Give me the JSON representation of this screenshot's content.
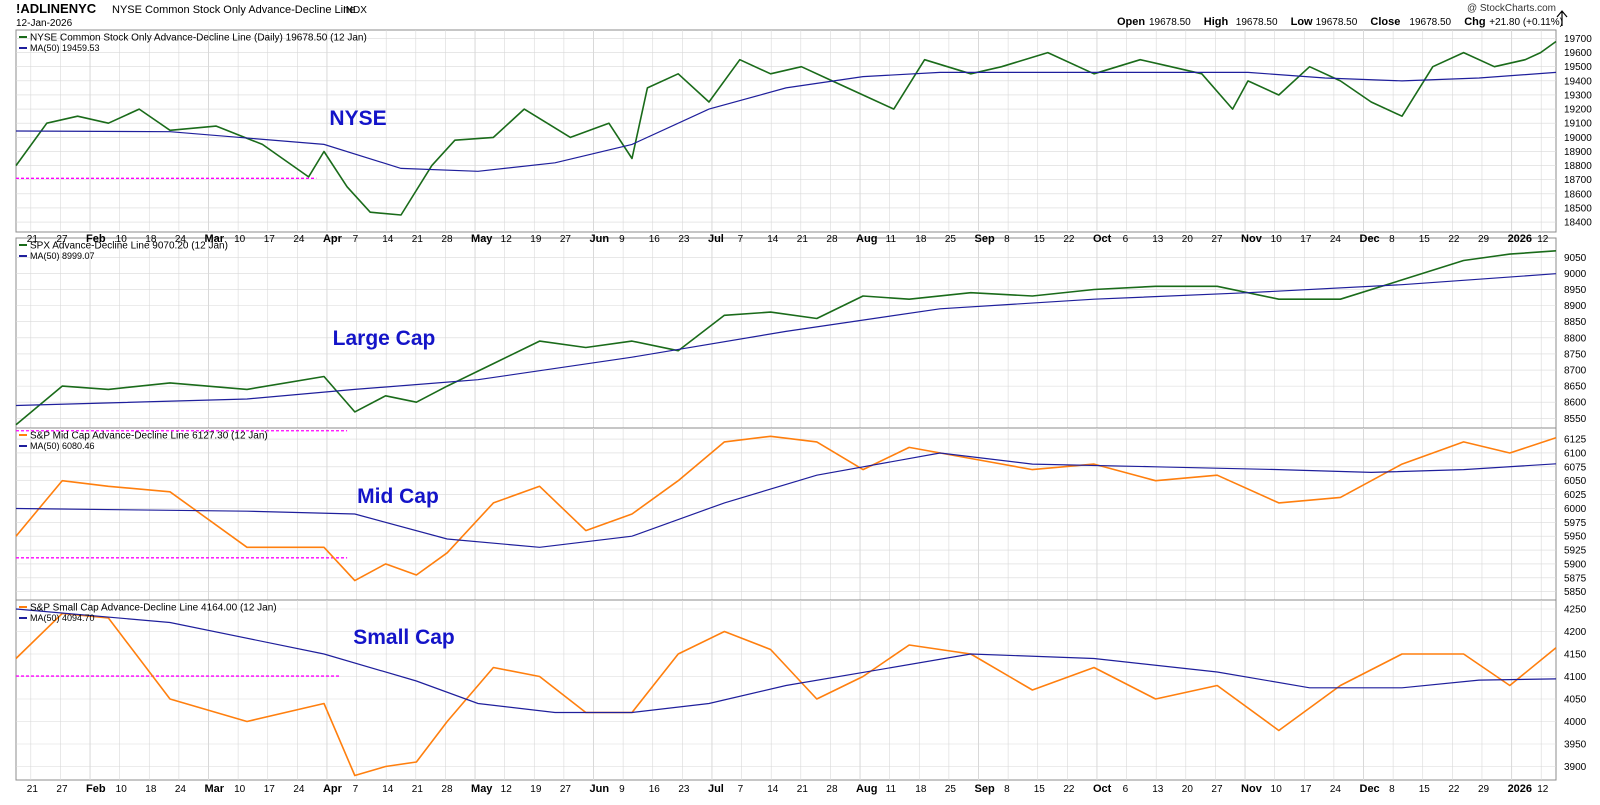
{
  "header": {
    "symbol": "!ADLINENYC",
    "name": "NYSE Common Stock Only Advance-Decline Line",
    "exchange": "INDX",
    "date": "12-Jan-2026",
    "watermark": "@ StockCharts.com",
    "quote": [
      {
        "label": "Open",
        "value": "19678.50"
      },
      {
        "label": "High",
        "value": "19678.50"
      },
      {
        "label": "Low",
        "value": "19678.50"
      },
      {
        "label": "Close",
        "value": "19678.50"
      },
      {
        "label": "Chg",
        "value": "+21.80 (+0.11%)"
      }
    ],
    "trend_icon": "up-arrow-icon"
  },
  "colors": {
    "green_line": "#1a6b1a",
    "orange_line": "#ff7f0e",
    "ma_line": "#1f1f9c",
    "annotation": "#1414c8",
    "reference": "#ff00ff",
    "grid": "#d9d9d9"
  },
  "x_axis": {
    "ticks": [
      {
        "label": "21",
        "bold": false
      },
      {
        "label": "27",
        "bold": false
      },
      {
        "label": "Feb",
        "bold": true
      },
      {
        "label": "10",
        "bold": false
      },
      {
        "label": "18",
        "bold": false
      },
      {
        "label": "24",
        "bold": false
      },
      {
        "label": "Mar",
        "bold": true
      },
      {
        "label": "10",
        "bold": false
      },
      {
        "label": "17",
        "bold": false
      },
      {
        "label": "24",
        "bold": false
      },
      {
        "label": "Apr",
        "bold": true
      },
      {
        "label": "7",
        "bold": false
      },
      {
        "label": "14",
        "bold": false
      },
      {
        "label": "21",
        "bold": false
      },
      {
        "label": "28",
        "bold": false
      },
      {
        "label": "May",
        "bold": true
      },
      {
        "label": "12",
        "bold": false
      },
      {
        "label": "19",
        "bold": false
      },
      {
        "label": "27",
        "bold": false
      },
      {
        "label": "Jun",
        "bold": true
      },
      {
        "label": "9",
        "bold": false
      },
      {
        "label": "16",
        "bold": false
      },
      {
        "label": "23",
        "bold": false
      },
      {
        "label": "Jul",
        "bold": true
      },
      {
        "label": "7",
        "bold": false
      },
      {
        "label": "14",
        "bold": false
      },
      {
        "label": "21",
        "bold": false
      },
      {
        "label": "28",
        "bold": false
      },
      {
        "label": "Aug",
        "bold": true
      },
      {
        "label": "11",
        "bold": false
      },
      {
        "label": "18",
        "bold": false
      },
      {
        "label": "25",
        "bold": false
      },
      {
        "label": "Sep",
        "bold": true
      },
      {
        "label": "8",
        "bold": false
      },
      {
        "label": "15",
        "bold": false
      },
      {
        "label": "22",
        "bold": false
      },
      {
        "label": "Oct",
        "bold": true
      },
      {
        "label": "6",
        "bold": false
      },
      {
        "label": "13",
        "bold": false
      },
      {
        "label": "20",
        "bold": false
      },
      {
        "label": "27",
        "bold": false
      },
      {
        "label": "Nov",
        "bold": true
      },
      {
        "label": "10",
        "bold": false
      },
      {
        "label": "17",
        "bold": false
      },
      {
        "label": "24",
        "bold": false
      },
      {
        "label": "Dec",
        "bold": true
      },
      {
        "label": "8",
        "bold": false
      },
      {
        "label": "15",
        "bold": false
      },
      {
        "label": "22",
        "bold": false
      },
      {
        "label": "29",
        "bold": false
      },
      {
        "label": "2026",
        "bold": true
      },
      {
        "label": "12",
        "bold": false
      }
    ]
  },
  "chart_data": [
    {
      "type": "line",
      "legend_line": "NYSE Common Stock Only Advance-Decline Line (Daily) 19678.50 (12 Jan)",
      "legend_ma": "MA(50) 19459.53",
      "annotation": "NYSE",
      "color": "green",
      "ylim": [
        18330,
        19760
      ],
      "yticks": [
        18400,
        18500,
        18600,
        18700,
        18800,
        18900,
        19000,
        19100,
        19200,
        19300,
        19400,
        19500,
        19600,
        19700
      ],
      "ref_level": 18710,
      "ref_x_range": [
        0,
        0.195
      ],
      "series": [
        {
          "role": "price",
          "x": [
            0,
            0.02,
            0.04,
            0.06,
            0.08,
            0.1,
            0.13,
            0.16,
            0.19,
            0.2,
            0.215,
            0.23,
            0.25,
            0.27,
            0.285,
            0.31,
            0.33,
            0.36,
            0.385,
            0.4,
            0.41,
            0.43,
            0.45,
            0.47,
            0.49,
            0.51,
            0.53,
            0.55,
            0.57,
            0.59,
            0.62,
            0.64,
            0.67,
            0.7,
            0.73,
            0.75,
            0.77,
            0.79,
            0.8,
            0.82,
            0.84,
            0.86,
            0.88,
            0.9,
            0.92,
            0.94,
            0.96,
            0.98,
            0.99,
            1.0
          ],
          "y": [
            18800,
            19100,
            19150,
            19100,
            19200,
            19050,
            19080,
            18950,
            18720,
            18900,
            18650,
            18470,
            18450,
            18800,
            18980,
            19000,
            19200,
            19000,
            19100,
            18850,
            19350,
            19450,
            19250,
            19550,
            19450,
            19500,
            19400,
            19300,
            19200,
            19550,
            19450,
            19500,
            19600,
            19450,
            19550,
            19500,
            19450,
            19200,
            19400,
            19300,
            19500,
            19400,
            19250,
            19150,
            19500,
            19600,
            19500,
            19550,
            19600,
            19678.5
          ]
        },
        {
          "role": "ma",
          "x": [
            0,
            0.1,
            0.2,
            0.25,
            0.3,
            0.35,
            0.4,
            0.45,
            0.5,
            0.55,
            0.6,
            0.7,
            0.8,
            0.85,
            0.9,
            0.95,
            1.0
          ],
          "y": [
            19045,
            19040,
            18950,
            18780,
            18760,
            18820,
            18950,
            19200,
            19350,
            19430,
            19460,
            19460,
            19460,
            19420,
            19400,
            19420,
            19459.53
          ]
        }
      ]
    },
    {
      "type": "line",
      "legend_line": "SPX Advance-Decline Line 9070.20 (12 Jan)",
      "legend_ma": "MA(50) 8999.07",
      "annotation": "Large Cap",
      "color": "green",
      "ylim": [
        8520,
        9110
      ],
      "yticks": [
        8550,
        8600,
        8650,
        8700,
        8750,
        8800,
        8850,
        8900,
        8950,
        9000,
        9050
      ],
      "series": [
        {
          "role": "price",
          "x": [
            0,
            0.03,
            0.06,
            0.1,
            0.15,
            0.2,
            0.22,
            0.24,
            0.26,
            0.28,
            0.31,
            0.34,
            0.37,
            0.4,
            0.43,
            0.46,
            0.49,
            0.52,
            0.55,
            0.58,
            0.62,
            0.66,
            0.7,
            0.74,
            0.78,
            0.82,
            0.86,
            0.9,
            0.94,
            0.97,
            1.0
          ],
          "y": [
            8530,
            8650,
            8640,
            8660,
            8640,
            8680,
            8570,
            8620,
            8600,
            8650,
            8720,
            8790,
            8770,
            8790,
            8760,
            8870,
            8880,
            8860,
            8930,
            8920,
            8940,
            8930,
            8950,
            8960,
            8960,
            8920,
            8920,
            8980,
            9040,
            9060,
            9070.2
          ]
        },
        {
          "role": "ma",
          "x": [
            0,
            0.15,
            0.22,
            0.3,
            0.4,
            0.5,
            0.6,
            0.7,
            0.8,
            0.9,
            1.0
          ],
          "y": [
            8590,
            8610,
            8640,
            8670,
            8740,
            8820,
            8890,
            8920,
            8940,
            8965,
            8999.07
          ]
        }
      ]
    },
    {
      "type": "line",
      "legend_line": "S&P Mid Cap Advance-Decline Line 6127.30 (12 Jan)",
      "legend_ma": "MA(50) 6080.46",
      "annotation": "Mid Cap",
      "color": "orange",
      "ylim": [
        5835,
        6145
      ],
      "yticks": [
        5850,
        5875,
        5900,
        5925,
        5950,
        5975,
        6000,
        6025,
        6050,
        6075,
        6100,
        6125
      ],
      "ref_levels": [
        {
          "level": 6140,
          "x_range": [
            0,
            0.215
          ]
        },
        {
          "level": 5911,
          "x_range": [
            0,
            0.215
          ]
        }
      ],
      "series": [
        {
          "role": "price",
          "x": [
            0,
            0.03,
            0.06,
            0.1,
            0.15,
            0.2,
            0.22,
            0.24,
            0.26,
            0.28,
            0.31,
            0.34,
            0.37,
            0.4,
            0.43,
            0.46,
            0.49,
            0.52,
            0.55,
            0.58,
            0.62,
            0.66,
            0.7,
            0.74,
            0.78,
            0.82,
            0.86,
            0.9,
            0.94,
            0.97,
            1.0
          ],
          "y": [
            5950,
            6050,
            6040,
            6030,
            5930,
            5930,
            5870,
            5900,
            5880,
            5920,
            6010,
            6040,
            5960,
            5990,
            6050,
            6120,
            6130,
            6120,
            6070,
            6110,
            6090,
            6070,
            6080,
            6050,
            6060,
            6010,
            6020,
            6080,
            6120,
            6100,
            6127.3
          ]
        },
        {
          "role": "ma",
          "x": [
            0,
            0.15,
            0.22,
            0.28,
            0.34,
            0.4,
            0.46,
            0.52,
            0.6,
            0.66,
            0.74,
            0.82,
            0.88,
            0.94,
            1.0
          ],
          "y": [
            6000,
            5995,
            5990,
            5945,
            5930,
            5950,
            6010,
            6060,
            6100,
            6080,
            6075,
            6070,
            6065,
            6070,
            6080.46
          ]
        }
      ]
    },
    {
      "type": "line",
      "legend_line": "S&P Small Cap Advance-Decline Line 4164.00 (12 Jan)",
      "legend_ma": "MA(50) 4094.70",
      "annotation": "Small Cap",
      "color": "orange",
      "ylim": [
        3870,
        4270
      ],
      "yticks": [
        3900,
        3950,
        4000,
        4050,
        4100,
        4150,
        4200,
        4250
      ],
      "ref_level": 4101,
      "ref_x_range": [
        0,
        0.21
      ],
      "series": [
        {
          "role": "price",
          "x": [
            0,
            0.03,
            0.06,
            0.1,
            0.15,
            0.2,
            0.22,
            0.24,
            0.26,
            0.28,
            0.31,
            0.34,
            0.37,
            0.4,
            0.43,
            0.46,
            0.49,
            0.52,
            0.55,
            0.58,
            0.62,
            0.66,
            0.7,
            0.74,
            0.78,
            0.82,
            0.86,
            0.9,
            0.94,
            0.97,
            1.0
          ],
          "y": [
            4140,
            4240,
            4230,
            4050,
            4000,
            4040,
            3880,
            3900,
            3910,
            4000,
            4120,
            4100,
            4020,
            4020,
            4150,
            4200,
            4160,
            4050,
            4100,
            4170,
            4150,
            4070,
            4120,
            4050,
            4080,
            3980,
            4080,
            4150,
            4150,
            4080,
            4164
          ]
        },
        {
          "role": "ma",
          "x": [
            0,
            0.1,
            0.2,
            0.26,
            0.3,
            0.35,
            0.4,
            0.45,
            0.5,
            0.56,
            0.62,
            0.7,
            0.78,
            0.84,
            0.9,
            0.95,
            1.0
          ],
          "y": [
            4250,
            4220,
            4150,
            4090,
            4040,
            4020,
            4020,
            4040,
            4080,
            4115,
            4150,
            4140,
            4110,
            4075,
            4075,
            4092,
            4094.7
          ]
        }
      ]
    }
  ]
}
